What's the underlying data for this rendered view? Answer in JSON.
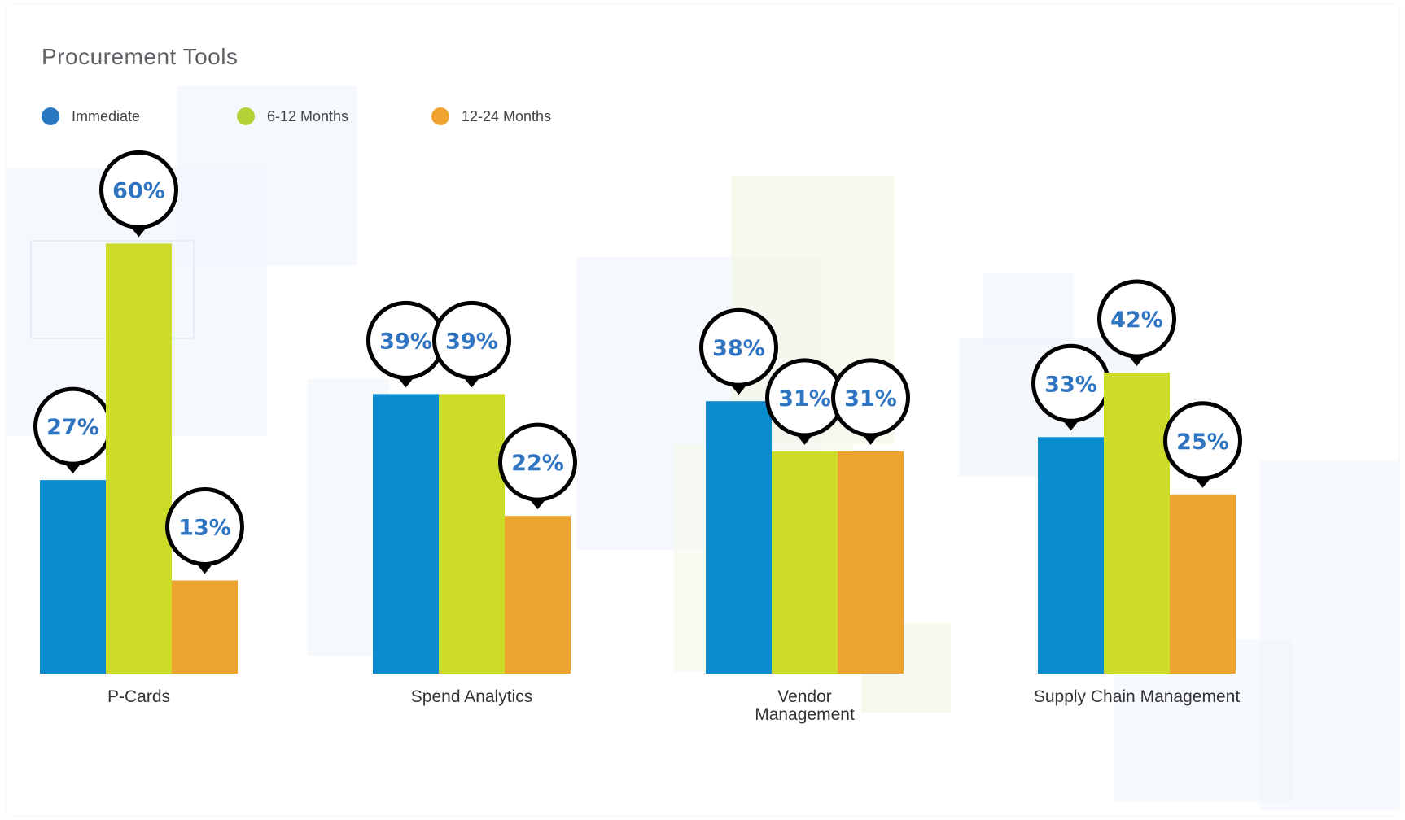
{
  "title": "Procurement Tools",
  "colors": {
    "immediate": "#0a8bcf",
    "six_twelve": "#cddc28",
    "twelve_twentyfour": "#eca42e",
    "legend_immediate": "#2b78c2",
    "legend_six_twelve": "#b3d236",
    "legend_twelve_twentyfour": "#f0a22f",
    "value_text": "#2f74c0"
  },
  "legend": [
    {
      "label": "Immediate",
      "color": "#2b78c2"
    },
    {
      "label": "6-12 Months",
      "color": "#b3d236"
    },
    {
      "label": "12-24 Months",
      "color": "#f0a22f"
    }
  ],
  "chart_data": {
    "type": "bar",
    "title": "Procurement Tools",
    "categories": [
      [
        "P-Cards"
      ],
      [
        "Spend Analytics"
      ],
      [
        "Vendor",
        "Management"
      ],
      [
        "Supply Chain Management"
      ]
    ],
    "series": [
      {
        "name": "Immediate",
        "color": "#0a8bcf",
        "values": [
          27,
          39,
          38,
          33
        ],
        "labels": [
          "27%",
          "39%",
          "38%",
          "33%"
        ]
      },
      {
        "name": "6-12 Months",
        "color": "#cddc28",
        "values": [
          60,
          39,
          31,
          42
        ],
        "labels": [
          "60%",
          "39%",
          "31%",
          "42%"
        ]
      },
      {
        "name": "12-24 Months",
        "color": "#eca42e",
        "values": [
          13,
          22,
          31,
          25
        ],
        "labels": [
          "13%",
          "22%",
          "31%",
          "25%"
        ]
      }
    ],
    "ylim": [
      0,
      100
    ],
    "value_format": "percent",
    "grid": false,
    "legend_position": "top-left"
  }
}
